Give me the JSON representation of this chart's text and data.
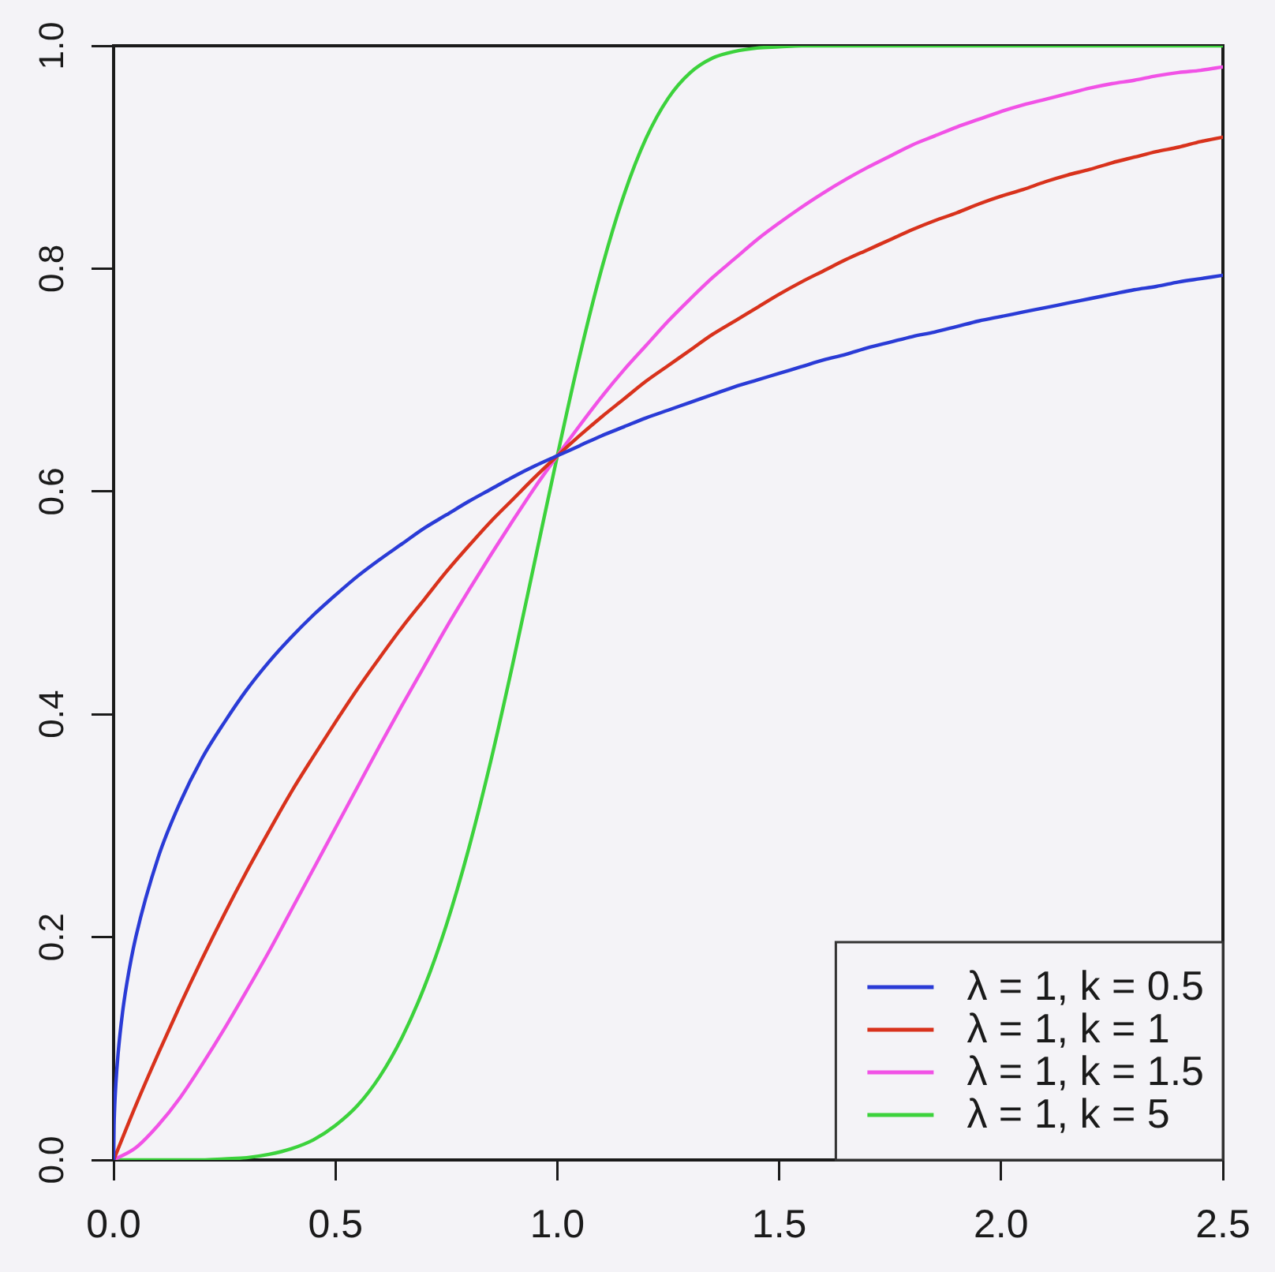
{
  "chart_data": {
    "type": "line",
    "x": [
      0,
      0.05,
      0.1,
      0.15,
      0.2,
      0.25,
      0.3,
      0.35,
      0.4,
      0.45,
      0.5,
      0.55,
      0.6,
      0.65,
      0.7,
      0.75,
      0.8,
      0.85,
      0.9,
      0.95,
      1,
      1.05,
      1.1,
      1.15,
      1.2,
      1.25,
      1.3,
      1.35,
      1.4,
      1.45,
      1.5,
      1.55,
      1.6,
      1.65,
      1.7,
      1.75,
      1.8,
      1.85,
      1.9,
      1.95,
      2,
      2.05,
      2.1,
      2.15,
      2.2,
      2.25,
      2.3,
      2.35,
      2.4,
      2.45,
      2.5
    ],
    "series": [
      {
        "name": "λ = 1, k = 0.5",
        "color": "#2a3bd6",
        "x": [
          0,
          0.001,
          0.002,
          0.005,
          0.01,
          0.02,
          0.03,
          0.05,
          0.1,
          0.15,
          0.2,
          0.25,
          0.3,
          0.35,
          0.4,
          0.45,
          0.5,
          0.55,
          0.6,
          0.65,
          0.7,
          0.75,
          0.8,
          0.85,
          0.9,
          0.95,
          1,
          1.05,
          1.1,
          1.15,
          1.2,
          1.25,
          1.3,
          1.35,
          1.4,
          1.45,
          1.5,
          1.55,
          1.6,
          1.65,
          1.7,
          1.75,
          1.8,
          1.85,
          1.9,
          1.95,
          2,
          2.05,
          2.1,
          2.15,
          2.2,
          2.25,
          2.3,
          2.35,
          2.4,
          2.45,
          2.5
        ],
        "values": [
          0,
          0.031,
          0.044,
          0.068,
          0.095,
          0.132,
          0.159,
          0.2,
          0.271,
          0.321,
          0.361,
          0.393,
          0.422,
          0.447,
          0.469,
          0.489,
          0.507,
          0.524,
          0.539,
          0.553,
          0.567,
          0.579,
          0.591,
          0.602,
          0.613,
          0.623,
          0.632,
          0.641,
          0.65,
          0.658,
          0.666,
          0.673,
          0.68,
          0.687,
          0.694,
          0.7,
          0.706,
          0.712,
          0.718,
          0.723,
          0.729,
          0.734,
          0.739,
          0.743,
          0.748,
          0.753,
          0.757,
          0.761,
          0.765,
          0.769,
          0.773,
          0.777,
          0.781,
          0.784,
          0.788,
          0.791,
          0.794
        ]
      },
      {
        "name": "λ = 1, k = 1",
        "color": "#d8321c",
        "values": [
          0,
          0.049,
          0.095,
          0.139,
          0.181,
          0.221,
          0.259,
          0.295,
          0.33,
          0.362,
          0.393,
          0.423,
          0.451,
          0.478,
          0.503,
          0.528,
          0.551,
          0.573,
          0.593,
          0.613,
          0.632,
          0.65,
          0.667,
          0.683,
          0.699,
          0.713,
          0.727,
          0.741,
          0.753,
          0.765,
          0.777,
          0.788,
          0.798,
          0.808,
          0.817,
          0.826,
          0.835,
          0.843,
          0.85,
          0.858,
          0.865,
          0.871,
          0.878,
          0.884,
          0.889,
          0.895,
          0.9,
          0.905,
          0.909,
          0.914,
          0.918
        ]
      },
      {
        "name": "λ = 1, k = 1.5",
        "color": "#f152e6",
        "values": [
          0,
          0.011,
          0.031,
          0.056,
          0.086,
          0.118,
          0.152,
          0.187,
          0.224,
          0.261,
          0.298,
          0.335,
          0.372,
          0.408,
          0.443,
          0.478,
          0.511,
          0.543,
          0.574,
          0.604,
          0.632,
          0.659,
          0.685,
          0.709,
          0.731,
          0.753,
          0.773,
          0.792,
          0.809,
          0.826,
          0.841,
          0.855,
          0.868,
          0.88,
          0.891,
          0.901,
          0.911,
          0.919,
          0.927,
          0.934,
          0.941,
          0.947,
          0.952,
          0.957,
          0.962,
          0.966,
          0.969,
          0.973,
          0.976,
          0.978,
          0.981
        ]
      },
      {
        "name": "λ = 1, k = 5",
        "color": "#3cd23c",
        "values": [
          0,
          0,
          0,
          0,
          0,
          0.001,
          0.002,
          0.005,
          0.01,
          0.018,
          0.031,
          0.049,
          0.075,
          0.11,
          0.155,
          0.211,
          0.279,
          0.358,
          0.446,
          0.539,
          0.632,
          0.721,
          0.8,
          0.866,
          0.917,
          0.953,
          0.976,
          0.989,
          0.995,
          0.998,
          0.999,
          1,
          1,
          1,
          1,
          1,
          1,
          1,
          1,
          1,
          1,
          1,
          1,
          1,
          1,
          1,
          1,
          1,
          1,
          1,
          1
        ]
      }
    ],
    "xlim": [
      0,
      2.5
    ],
    "ylim": [
      0,
      1
    ],
    "xticks": [
      {
        "value": 0,
        "label": "0.0"
      },
      0.5,
      {
        "value": 1,
        "label": "1.0"
      },
      1.5,
      {
        "value": 2,
        "label": "2.0"
      },
      2.5
    ],
    "yticks": [
      {
        "value": 0,
        "label": "0.0"
      },
      0.2,
      0.4,
      0.6,
      0.8,
      {
        "value": 1,
        "label": "1.0"
      }
    ],
    "legend": "bottom right"
  }
}
